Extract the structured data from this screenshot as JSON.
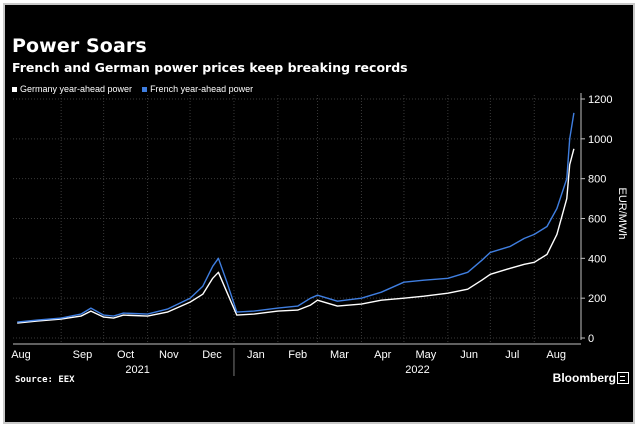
{
  "header": {
    "title": "Power Soars",
    "subtitle": "French and German power prices keep breaking records"
  },
  "footer": {
    "source": "Source: EEX",
    "brand": "Bloomberg"
  },
  "colors": {
    "background": "#000000",
    "germany": "#ffffff",
    "france": "#3f7ee0",
    "grid": "#3a3a3a"
  },
  "chart_data": {
    "type": "line",
    "title": "Power Soars",
    "subtitle": "French and German power prices keep breaking records",
    "xlabel": "",
    "ylabel": "EUR/MWh",
    "ylim": [
      0,
      1200
    ],
    "yticks": [
      0,
      200,
      400,
      600,
      800,
      1000,
      1200
    ],
    "y_axis_side": "right",
    "grid": true,
    "legend_position": "top-left",
    "x_tick_labels": [
      "Aug",
      "Sep",
      "Oct",
      "Nov",
      "Dec",
      "Jan",
      "Feb",
      "Mar",
      "Apr",
      "May",
      "Jun",
      "Jul",
      "Aug"
    ],
    "x_year_labels": [
      "2021",
      "2022"
    ],
    "source": "Source: EEX",
    "series": [
      {
        "name": "Germany year-ahead power",
        "color": "#ffffff",
        "points": [
          [
            "2021-08-01",
            75
          ],
          [
            "2021-08-15",
            85
          ],
          [
            "2021-09-01",
            95
          ],
          [
            "2021-09-15",
            110
          ],
          [
            "2021-09-22",
            135
          ],
          [
            "2021-10-01",
            105
          ],
          [
            "2021-10-08",
            100
          ],
          [
            "2021-10-15",
            115
          ],
          [
            "2021-11-01",
            110
          ],
          [
            "2021-11-15",
            130
          ],
          [
            "2021-12-01",
            180
          ],
          [
            "2021-12-10",
            220
          ],
          [
            "2021-12-17",
            300
          ],
          [
            "2021-12-21",
            330
          ],
          [
            "2021-12-27",
            230
          ],
          [
            "2022-01-03",
            115
          ],
          [
            "2022-01-15",
            120
          ],
          [
            "2022-02-01",
            135
          ],
          [
            "2022-02-15",
            140
          ],
          [
            "2022-02-24",
            165
          ],
          [
            "2022-03-01",
            190
          ],
          [
            "2022-03-15",
            160
          ],
          [
            "2022-04-01",
            170
          ],
          [
            "2022-04-15",
            190
          ],
          [
            "2022-05-01",
            200
          ],
          [
            "2022-05-15",
            210
          ],
          [
            "2022-06-01",
            225
          ],
          [
            "2022-06-15",
            245
          ],
          [
            "2022-06-25",
            290
          ],
          [
            "2022-07-01",
            320
          ],
          [
            "2022-07-15",
            350
          ],
          [
            "2022-07-25",
            370
          ],
          [
            "2022-08-01",
            380
          ],
          [
            "2022-08-10",
            420
          ],
          [
            "2022-08-17",
            520
          ],
          [
            "2022-08-24",
            700
          ],
          [
            "2022-08-26",
            870
          ],
          [
            "2022-08-29",
            950
          ]
        ]
      },
      {
        "name": "French year-ahead power",
        "color": "#3f7ee0",
        "points": [
          [
            "2021-08-01",
            80
          ],
          [
            "2021-08-15",
            90
          ],
          [
            "2021-09-01",
            100
          ],
          [
            "2021-09-15",
            120
          ],
          [
            "2021-09-22",
            150
          ],
          [
            "2021-10-01",
            115
          ],
          [
            "2021-10-08",
            110
          ],
          [
            "2021-10-15",
            125
          ],
          [
            "2021-11-01",
            120
          ],
          [
            "2021-11-15",
            145
          ],
          [
            "2021-12-01",
            200
          ],
          [
            "2021-12-10",
            260
          ],
          [
            "2021-12-17",
            360
          ],
          [
            "2021-12-21",
            400
          ],
          [
            "2021-12-27",
            280
          ],
          [
            "2022-01-03",
            130
          ],
          [
            "2022-01-15",
            135
          ],
          [
            "2022-02-01",
            150
          ],
          [
            "2022-02-15",
            160
          ],
          [
            "2022-02-24",
            200
          ],
          [
            "2022-03-01",
            215
          ],
          [
            "2022-03-15",
            185
          ],
          [
            "2022-04-01",
            200
          ],
          [
            "2022-04-15",
            230
          ],
          [
            "2022-05-01",
            280
          ],
          [
            "2022-05-15",
            290
          ],
          [
            "2022-06-01",
            300
          ],
          [
            "2022-06-15",
            330
          ],
          [
            "2022-06-25",
            390
          ],
          [
            "2022-07-01",
            430
          ],
          [
            "2022-07-15",
            460
          ],
          [
            "2022-07-25",
            500
          ],
          [
            "2022-08-01",
            520
          ],
          [
            "2022-08-10",
            560
          ],
          [
            "2022-08-17",
            650
          ],
          [
            "2022-08-24",
            800
          ],
          [
            "2022-08-26",
            1000
          ],
          [
            "2022-08-29",
            1130
          ]
        ]
      }
    ]
  }
}
